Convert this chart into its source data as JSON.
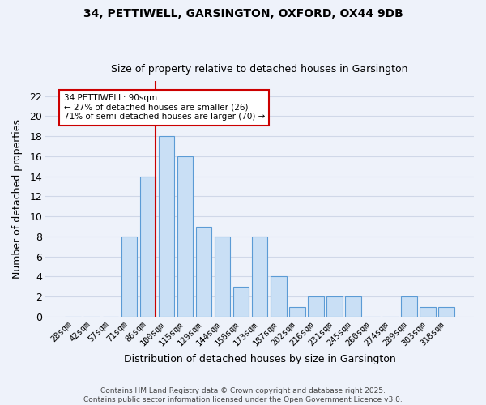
{
  "title1": "34, PETTIWELL, GARSINGTON, OXFORD, OX44 9DB",
  "title2": "Size of property relative to detached houses in Garsington",
  "xlabel": "Distribution of detached houses by size in Garsington",
  "ylabel": "Number of detached properties",
  "bin_labels": [
    "28sqm",
    "42sqm",
    "57sqm",
    "71sqm",
    "86sqm",
    "100sqm",
    "115sqm",
    "129sqm",
    "144sqm",
    "158sqm",
    "173sqm",
    "187sqm",
    "202sqm",
    "216sqm",
    "231sqm",
    "245sqm",
    "260sqm",
    "274sqm",
    "289sqm",
    "303sqm",
    "318sqm"
  ],
  "bin_counts": [
    0,
    0,
    0,
    8,
    14,
    18,
    16,
    9,
    8,
    3,
    8,
    4,
    1,
    2,
    2,
    2,
    0,
    0,
    2,
    1,
    1
  ],
  "bar_color": "#c9dff5",
  "bar_edgecolor": "#5b9bd5",
  "subject_line_color": "#cc0000",
  "annotation_text": "34 PETTIWELL: 90sqm\n← 27% of detached houses are smaller (26)\n71% of semi-detached houses are larger (70) →",
  "annotation_box_color": "white",
  "annotation_box_edgecolor": "#cc0000",
  "yticks": [
    0,
    2,
    4,
    6,
    8,
    10,
    12,
    14,
    16,
    18,
    20,
    22
  ],
  "ylim": [
    0,
    23.5
  ],
  "background_color": "#eef2fa",
  "grid_color": "#d0d8e8",
  "footer_text": "Contains HM Land Registry data © Crown copyright and database right 2025.\nContains public sector information licensed under the Open Government Licence v3.0.",
  "subject_bin_index": 4,
  "bar_width": 0.85
}
